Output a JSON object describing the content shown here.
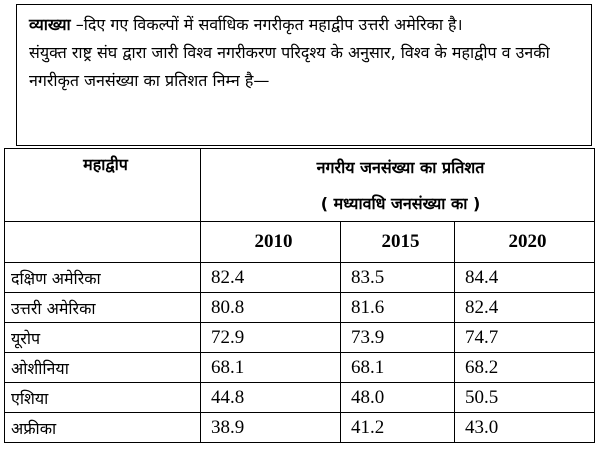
{
  "explanation": {
    "heading": "व्याख्या",
    "line1_rest": " –दिए गए विकल्पों में सर्वाधिक नगरीकृत महाद्वीप उत्तरी अमेरिका है।",
    "line2": "संयुक्त राष्ट्र संघ द्वारा जारी विश्व नगरीकरण परिदृश्य के अनुसार, विश्व के महाद्वीप व उनकी नगरीकृत जनसंख्या का प्रतिशत निम्न है—"
  },
  "table": {
    "col_continent": "महाद्वीप",
    "col_urban_title": "नगरीय जनसंख्या का प्रतिशत",
    "col_urban_subtitle": "( मध्यावधि जनसंख्या का )",
    "years": [
      "2010",
      "2015",
      "2020"
    ],
    "rows": [
      {
        "continent": "दक्षिण अमेरिका",
        "v2010": "82.4",
        "v2015": "83.5",
        "v2020": "84.4"
      },
      {
        "continent": "उत्तरी अमेरिका",
        "v2010": "80.8",
        "v2015": "81.6",
        "v2020": "82.4"
      },
      {
        "continent": "यूरोप",
        "v2010": "72.9",
        "v2015": "73.9",
        "v2020": "74.7"
      },
      {
        "continent": "ओशीनिया",
        "v2010": "68.1",
        "v2015": "68.1",
        "v2020": "68.2"
      },
      {
        "continent": "एशिया",
        "v2010": "44.8",
        "v2015": "48.0",
        "v2020": "50.5"
      },
      {
        "continent": "अफ्रीका",
        "v2010": "38.9",
        "v2015": "41.2",
        "v2020": "43.0"
      }
    ]
  }
}
